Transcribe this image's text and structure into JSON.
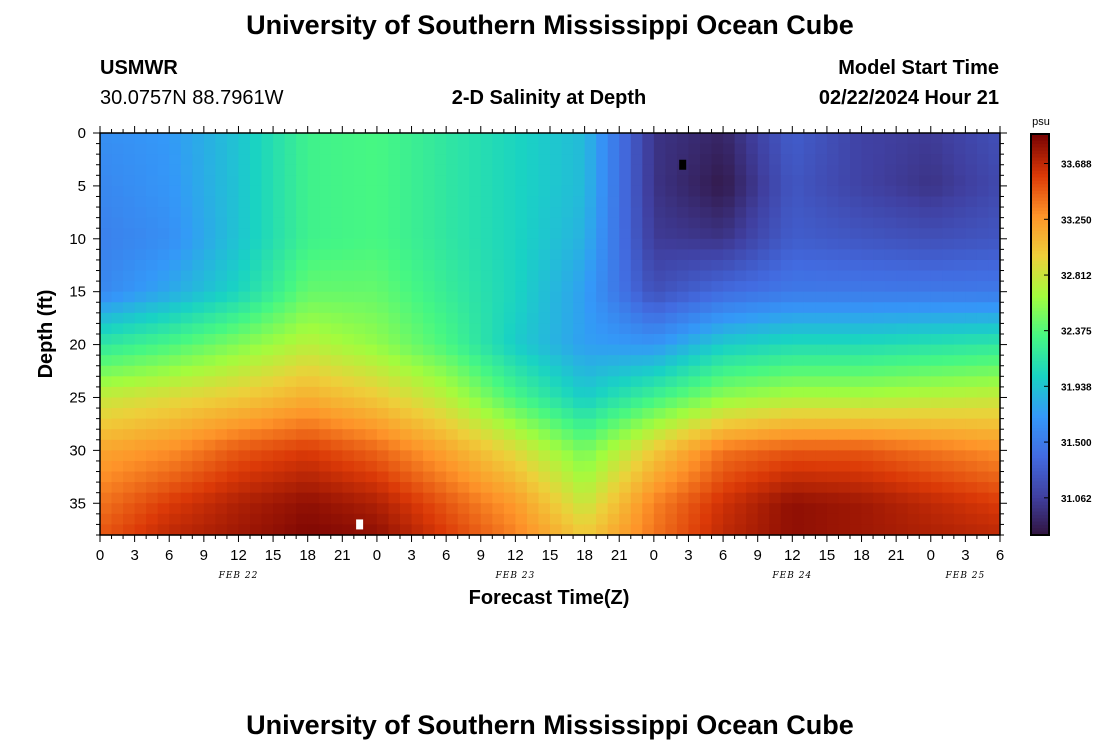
{
  "header": {
    "title": "University of Southern Mississippi Ocean Cube",
    "station": "USMWR",
    "coords": "30.0757N  88.7961W",
    "subtitle": "2-D Salinity at Depth",
    "model_start_label": "Model Start Time",
    "model_start_value": "02/22/2024 Hour 21",
    "footer_title": "University of Southern Mississippi Ocean Cube"
  },
  "chart_data": {
    "type": "heatmap",
    "title": "2-D Salinity at Depth",
    "xlabel": "Forecast Time(Z)",
    "ylabel": "Depth (ft)",
    "x_unit": "hours since FEB 22 00Z",
    "x_range": [
      0,
      78
    ],
    "y_range": [
      0,
      38
    ],
    "y_inverted": true,
    "x_tick_labels": [
      "0",
      "3",
      "6",
      "9",
      "12",
      "15",
      "18",
      "21",
      "0",
      "3",
      "6",
      "9",
      "12",
      "15",
      "18",
      "21",
      "0",
      "3",
      "6",
      "9",
      "12",
      "15",
      "18",
      "21",
      "0",
      "3",
      "6"
    ],
    "y_ticks": [
      0,
      5,
      10,
      15,
      20,
      25,
      30,
      35
    ],
    "day_labels": [
      {
        "label": "FEB 22",
        "hour": 12
      },
      {
        "label": "FEB 23",
        "hour": 36
      },
      {
        "label": "FEB 24",
        "hour": 60
      },
      {
        "label": "FEB 25",
        "hour": 75
      }
    ],
    "colorbar": {
      "unit": "psu",
      "ticks": [
        "33.688",
        "33.250",
        "32.812",
        "32.375",
        "31.938",
        "31.500",
        "31.062"
      ],
      "tick_values": [
        33.688,
        33.25,
        32.812,
        32.375,
        31.938,
        31.5,
        31.062
      ],
      "range": [
        30.77,
        33.92
      ]
    },
    "grid_depths": [
      0,
      5,
      10,
      15,
      20,
      25,
      30,
      35,
      38
    ],
    "grid_hours": [
      0,
      6,
      12,
      18,
      24,
      30,
      36,
      42,
      48,
      54,
      60,
      66,
      72,
      78
    ],
    "salinity": [
      [
        31.65,
        31.72,
        31.95,
        32.3,
        32.35,
        32.2,
        32.05,
        31.9,
        31.0,
        30.9,
        31.3,
        31.1,
        31.05,
        31.2
      ],
      [
        31.6,
        31.7,
        31.95,
        32.3,
        32.35,
        32.2,
        32.05,
        31.9,
        31.0,
        30.82,
        31.25,
        31.1,
        31.0,
        31.15
      ],
      [
        31.55,
        31.65,
        31.95,
        32.3,
        32.35,
        32.2,
        32.05,
        31.85,
        31.05,
        31.0,
        31.3,
        31.25,
        31.2,
        31.25
      ],
      [
        31.6,
        31.8,
        32.05,
        32.45,
        32.45,
        32.25,
        32.05,
        31.75,
        31.2,
        31.4,
        31.5,
        31.5,
        31.5,
        31.5
      ],
      [
        32.2,
        32.35,
        32.55,
        32.75,
        32.6,
        32.35,
        32.0,
        31.75,
        31.7,
        32.0,
        32.1,
        32.1,
        32.15,
        32.2
      ],
      [
        32.8,
        32.9,
        33.0,
        33.15,
        33.0,
        32.75,
        32.35,
        32.0,
        32.3,
        32.6,
        32.7,
        32.7,
        32.75,
        32.8
      ],
      [
        33.2,
        33.3,
        33.5,
        33.6,
        33.45,
        33.2,
        32.9,
        32.5,
        33.0,
        33.4,
        33.5,
        33.5,
        33.4,
        33.3
      ],
      [
        33.4,
        33.6,
        33.75,
        33.85,
        33.75,
        33.5,
        33.25,
        32.8,
        33.35,
        33.65,
        33.85,
        33.8,
        33.7,
        33.6
      ],
      [
        33.5,
        33.7,
        33.8,
        33.9,
        33.85,
        33.6,
        33.35,
        33.0,
        33.4,
        33.7,
        33.85,
        33.8,
        33.75,
        33.7
      ]
    ],
    "markers": [
      {
        "hour": 50.5,
        "depth": 3,
        "color": "#000000"
      },
      {
        "hour": 22.5,
        "depth": 37,
        "color": "#ffffff"
      }
    ]
  }
}
